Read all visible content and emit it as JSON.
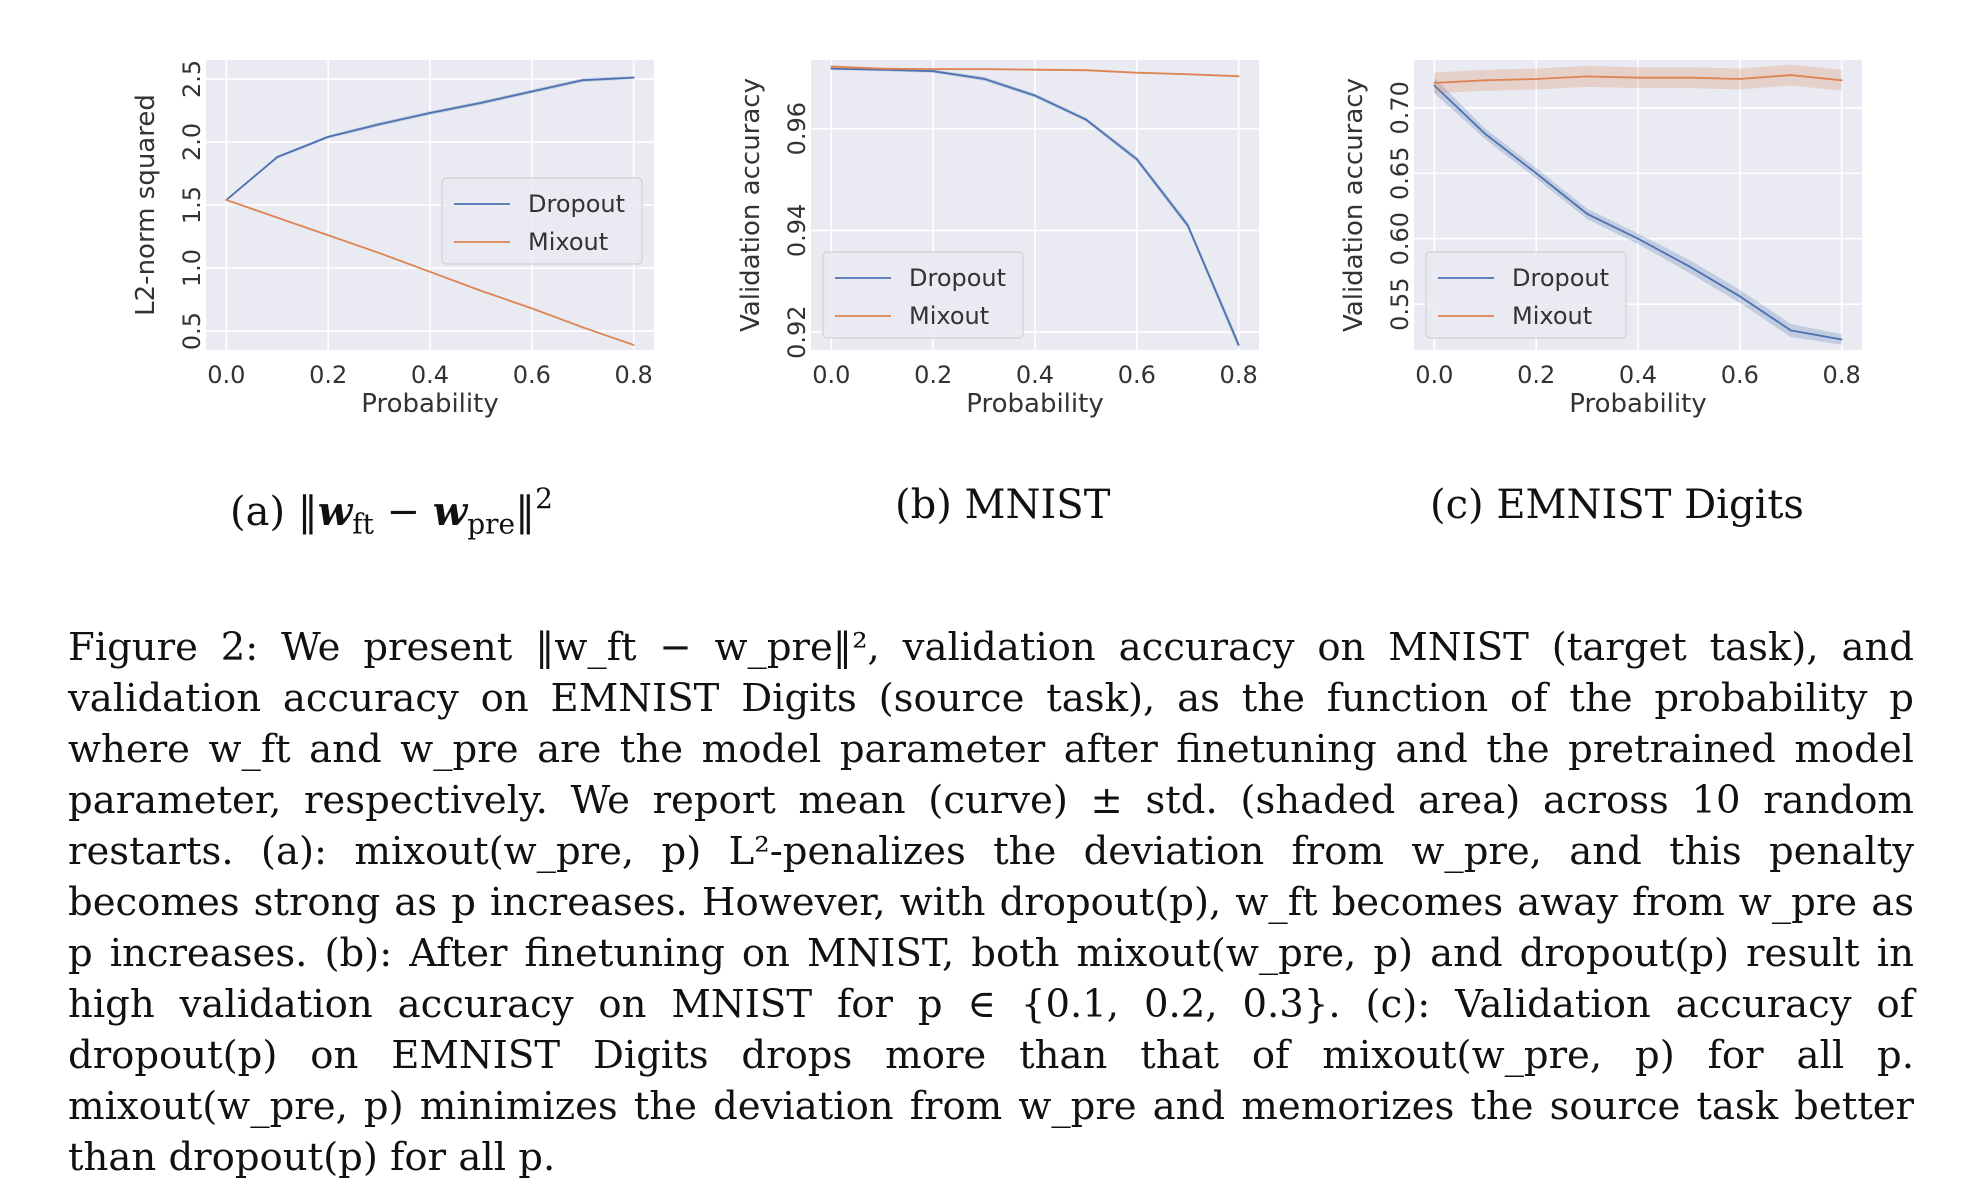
{
  "subcaptions": {
    "a": {
      "label": "(a)",
      "text": "‖w_ft − w_pre‖²"
    },
    "b": {
      "label": "(b)",
      "text": "MNIST"
    },
    "c": {
      "label": "(c)",
      "text": "EMNIST Digits"
    }
  },
  "caption": {
    "text": "Figure 2: We present ‖w_ft − w_pre‖², validation accuracy on MNIST (target task), and validation accuracy on EMNIST Digits (source task), as the function of the probability p where w_ft and w_pre are the model parameter after finetuning and the pretrained model parameter, respectively. We report mean (curve) ± std. (shaded area) across 10 random restarts. (a): mixout(w_pre, p) L²-penalizes the deviation from w_pre, and this penalty becomes strong as p increases. However, with dropout(p), w_ft becomes away from w_pre as p increases. (b): After finetuning on MNIST, both mixout(w_pre, p) and dropout(p) result in high validation accuracy on MNIST for p ∈ {0.1, 0.2, 0.3}. (c): Validation accuracy of dropout(p) on EMNIST Digits drops more than that of mixout(w_pre, p) for all p. mixout(w_pre, p) minimizes the deviation from w_pre and memorizes the source task better than dropout(p) for all p."
  },
  "colors": {
    "dropout": "#4c72b0",
    "mixout": "#dd8452",
    "panel_bg": "#eaeaf2",
    "grid": "#ffffff"
  },
  "chart_data": [
    {
      "type": "line",
      "xlabel": "Probability",
      "ylabel": "L2-norm squared",
      "xlim": [
        -0.04,
        0.84
      ],
      "ylim": [
        0.35,
        2.65
      ],
      "xticks": [
        "0.0",
        "0.2",
        "0.4",
        "0.6",
        "0.8"
      ],
      "yticks": [
        "0.5",
        "1.0",
        "1.5",
        "2.0",
        "2.5"
      ],
      "grid": true,
      "legend": "center-right",
      "x": [
        0.0,
        0.1,
        0.2,
        0.3,
        0.4,
        0.5,
        0.6,
        0.7,
        0.8
      ],
      "series": [
        {
          "name": "Dropout",
          "values": [
            1.54,
            1.88,
            2.04,
            2.14,
            2.23,
            2.31,
            2.4,
            2.49,
            2.51
          ],
          "std": [
            0.005,
            0.012,
            0.012,
            0.015,
            0.015,
            0.015,
            0.015,
            0.015,
            0.012
          ]
        },
        {
          "name": "Mixout",
          "values": [
            1.54,
            1.4,
            1.26,
            1.12,
            0.97,
            0.82,
            0.68,
            0.53,
            0.39
          ],
          "std": [
            0.003,
            0.003,
            0.003,
            0.003,
            0.003,
            0.003,
            0.003,
            0.003,
            0.003
          ]
        }
      ]
    },
    {
      "type": "line",
      "xlabel": "Probability",
      "ylabel": "Validation accuracy",
      "xlim": [
        -0.04,
        0.84
      ],
      "ylim": [
        0.9165,
        0.9735
      ],
      "xticks": [
        "0.0",
        "0.2",
        "0.4",
        "0.6",
        "0.8"
      ],
      "yticks": [
        "0.92",
        "0.94",
        "0.96"
      ],
      "grid": true,
      "legend": "lower-left",
      "x": [
        0.0,
        0.1,
        0.2,
        0.3,
        0.4,
        0.5,
        0.6,
        0.7,
        0.8
      ],
      "series": [
        {
          "name": "Dropout",
          "values": [
            0.9718,
            0.9716,
            0.9713,
            0.9698,
            0.9665,
            0.9618,
            0.954,
            0.941,
            0.9175
          ],
          "std": [
            0.0003,
            0.0003,
            0.0003,
            0.0004,
            0.0004,
            0.0004,
            0.0005,
            0.0006,
            0.0008
          ]
        },
        {
          "name": "Mixout",
          "values": [
            0.9722,
            0.9718,
            0.9717,
            0.9717,
            0.9716,
            0.9715,
            0.971,
            0.9707,
            0.9703
          ],
          "std": [
            0.0003,
            0.0002,
            0.0002,
            0.0002,
            0.0002,
            0.0002,
            0.0002,
            0.0002,
            0.0002
          ]
        }
      ]
    },
    {
      "type": "line",
      "xlabel": "Probability",
      "ylabel": "Validation accuracy",
      "xlim": [
        -0.04,
        0.84
      ],
      "ylim": [
        0.515,
        0.7365
      ],
      "xticks": [
        "0.0",
        "0.2",
        "0.4",
        "0.6",
        "0.8"
      ],
      "yticks": [
        "0.55",
        "0.60",
        "0.65",
        "0.70"
      ],
      "grid": true,
      "legend": "lower-left",
      "x": [
        0.0,
        0.1,
        0.2,
        0.3,
        0.4,
        0.5,
        0.6,
        0.7,
        0.8
      ],
      "series": [
        {
          "name": "Dropout",
          "values": [
            0.717,
            0.68,
            0.65,
            0.619,
            0.6,
            0.579,
            0.556,
            0.53,
            0.523
          ],
          "std": [
            0.006,
            0.004,
            0.004,
            0.004,
            0.004,
            0.005,
            0.005,
            0.005,
            0.004
          ]
        },
        {
          "name": "Mixout",
          "values": [
            0.719,
            0.721,
            0.722,
            0.724,
            0.723,
            0.723,
            0.722,
            0.725,
            0.721
          ],
          "std": [
            0.008,
            0.008,
            0.008,
            0.008,
            0.008,
            0.008,
            0.008,
            0.008,
            0.008
          ]
        }
      ]
    }
  ]
}
